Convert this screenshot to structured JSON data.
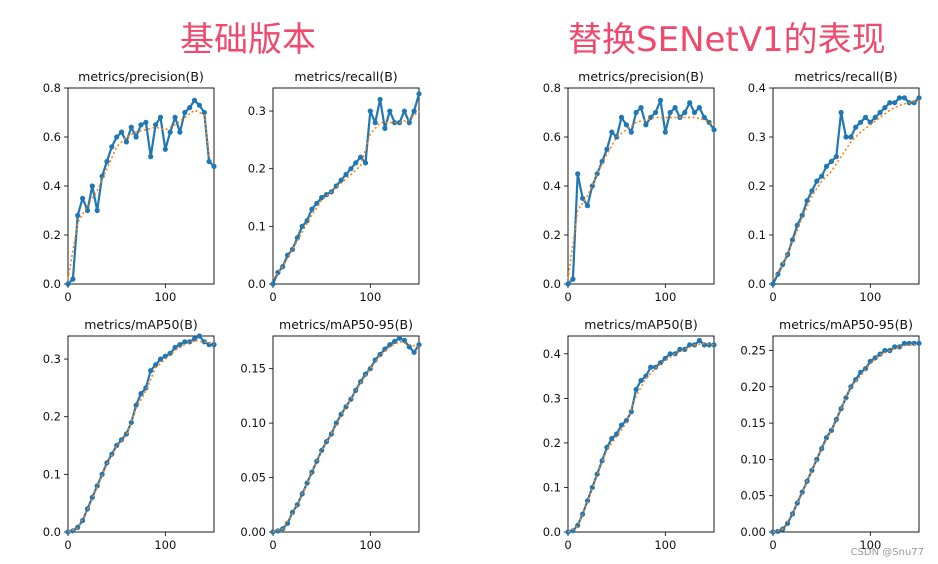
{
  "groups": [
    {
      "title": "基础版本"
    },
    {
      "title": "替换SENetV1的表现"
    }
  ],
  "colors": {
    "series": "#1f77b4",
    "smooth": "#ff7f0e",
    "title_accent": "#ef4a6e"
  },
  "watermark": "CSDN @Snu77",
  "chart_data": [
    {
      "type": "line",
      "title": "metrics/precision(B)",
      "xlim": [
        0,
        150
      ],
      "ylim": [
        0,
        0.8
      ],
      "xticks": [
        0,
        100
      ],
      "yticks": [
        0.0,
        0.2,
        0.4,
        0.6,
        0.8
      ],
      "series": [
        {
          "name": "results",
          "x": [
            0,
            5,
            10,
            15,
            20,
            25,
            30,
            35,
            40,
            45,
            50,
            55,
            60,
            65,
            70,
            75,
            80,
            85,
            90,
            95,
            100,
            105,
            110,
            115,
            120,
            125,
            130,
            135,
            140,
            145,
            150
          ],
          "y": [
            0,
            0.02,
            0.28,
            0.35,
            0.3,
            0.4,
            0.3,
            0.44,
            0.5,
            0.56,
            0.6,
            0.62,
            0.58,
            0.64,
            0.6,
            0.65,
            0.66,
            0.52,
            0.65,
            0.68,
            0.55,
            0.62,
            0.68,
            0.62,
            0.7,
            0.72,
            0.75,
            0.73,
            0.7,
            0.5,
            0.48
          ]
        },
        {
          "name": "smooth",
          "x": [
            0,
            10,
            20,
            30,
            40,
            50,
            60,
            70,
            80,
            90,
            100,
            110,
            120,
            130,
            140,
            145
          ],
          "y": [
            0.02,
            0.25,
            0.32,
            0.38,
            0.47,
            0.56,
            0.6,
            0.62,
            0.63,
            0.64,
            0.63,
            0.65,
            0.68,
            0.71,
            0.69,
            0.52
          ]
        }
      ]
    },
    {
      "type": "line",
      "title": "metrics/recall(B)",
      "xlim": [
        0,
        150
      ],
      "ylim": [
        0,
        0.34
      ],
      "xticks": [
        0,
        100
      ],
      "yticks": [
        0.0,
        0.1,
        0.2,
        0.3
      ],
      "series": [
        {
          "name": "results",
          "x": [
            0,
            5,
            10,
            15,
            20,
            25,
            30,
            35,
            40,
            45,
            50,
            55,
            60,
            65,
            70,
            75,
            80,
            85,
            90,
            95,
            100,
            105,
            110,
            115,
            120,
            125,
            130,
            135,
            140,
            145,
            150
          ],
          "y": [
            0,
            0.02,
            0.03,
            0.05,
            0.06,
            0.08,
            0.1,
            0.11,
            0.13,
            0.14,
            0.15,
            0.155,
            0.16,
            0.17,
            0.18,
            0.19,
            0.2,
            0.21,
            0.22,
            0.21,
            0.3,
            0.28,
            0.32,
            0.27,
            0.3,
            0.28,
            0.28,
            0.3,
            0.28,
            0.3,
            0.33
          ]
        },
        {
          "name": "smooth",
          "x": [
            0,
            10,
            20,
            30,
            40,
            50,
            60,
            70,
            80,
            90,
            100,
            110,
            120,
            130,
            140,
            150
          ],
          "y": [
            0.01,
            0.03,
            0.06,
            0.09,
            0.12,
            0.145,
            0.16,
            0.175,
            0.19,
            0.205,
            0.26,
            0.28,
            0.28,
            0.28,
            0.285,
            0.3
          ]
        }
      ]
    },
    {
      "type": "line",
      "title": "metrics/mAP50(B)",
      "xlim": [
        0,
        150
      ],
      "ylim": [
        0,
        0.34
      ],
      "xticks": [
        0,
        100
      ],
      "yticks": [
        0.0,
        0.1,
        0.2,
        0.3
      ],
      "series": [
        {
          "name": "results",
          "x": [
            0,
            5,
            10,
            15,
            20,
            25,
            30,
            35,
            40,
            45,
            50,
            55,
            60,
            65,
            70,
            75,
            80,
            85,
            90,
            95,
            100,
            105,
            110,
            115,
            120,
            125,
            130,
            135,
            140,
            145,
            150
          ],
          "y": [
            0,
            0.002,
            0.008,
            0.02,
            0.04,
            0.06,
            0.08,
            0.1,
            0.12,
            0.135,
            0.15,
            0.16,
            0.17,
            0.19,
            0.22,
            0.24,
            0.25,
            0.28,
            0.29,
            0.3,
            0.305,
            0.31,
            0.32,
            0.325,
            0.33,
            0.33,
            0.335,
            0.34,
            0.33,
            0.325,
            0.325
          ]
        },
        {
          "name": "smooth",
          "x": [
            0,
            10,
            20,
            30,
            40,
            50,
            60,
            70,
            80,
            90,
            100,
            110,
            120,
            130,
            140,
            150
          ],
          "y": [
            0,
            0.007,
            0.038,
            0.078,
            0.118,
            0.148,
            0.168,
            0.215,
            0.245,
            0.285,
            0.3,
            0.315,
            0.325,
            0.332,
            0.33,
            0.325
          ]
        }
      ]
    },
    {
      "type": "line",
      "title": "metrics/mAP50-95(B)",
      "xlim": [
        0,
        150
      ],
      "ylim": [
        0,
        0.18
      ],
      "xticks": [
        0,
        100
      ],
      "yticks": [
        0.0,
        0.05,
        0.1,
        0.15
      ],
      "series": [
        {
          "name": "results",
          "x": [
            0,
            5,
            10,
            15,
            20,
            25,
            30,
            35,
            40,
            45,
            50,
            55,
            60,
            65,
            70,
            75,
            80,
            85,
            90,
            95,
            100,
            105,
            110,
            115,
            120,
            125,
            130,
            135,
            140,
            145,
            150
          ],
          "y": [
            0,
            0.001,
            0.003,
            0.008,
            0.018,
            0.025,
            0.035,
            0.045,
            0.055,
            0.065,
            0.075,
            0.083,
            0.09,
            0.1,
            0.108,
            0.115,
            0.122,
            0.13,
            0.138,
            0.145,
            0.15,
            0.158,
            0.163,
            0.168,
            0.172,
            0.175,
            0.178,
            0.176,
            0.17,
            0.165,
            0.172
          ]
        },
        {
          "name": "smooth",
          "x": [
            0,
            10,
            20,
            30,
            40,
            50,
            60,
            70,
            80,
            90,
            100,
            110,
            120,
            130,
            140,
            150
          ],
          "y": [
            0,
            0.003,
            0.017,
            0.035,
            0.055,
            0.075,
            0.09,
            0.107,
            0.122,
            0.137,
            0.15,
            0.162,
            0.17,
            0.175,
            0.172,
            0.17
          ]
        }
      ]
    },
    {
      "type": "line",
      "title": "metrics/precision(B)",
      "xlim": [
        0,
        150
      ],
      "ylim": [
        0,
        0.8
      ],
      "xticks": [
        0,
        100
      ],
      "yticks": [
        0.0,
        0.2,
        0.4,
        0.6,
        0.8
      ],
      "series": [
        {
          "name": "results",
          "x": [
            0,
            5,
            10,
            15,
            20,
            25,
            30,
            35,
            40,
            45,
            50,
            55,
            60,
            65,
            70,
            75,
            80,
            85,
            90,
            95,
            100,
            105,
            110,
            115,
            120,
            125,
            130,
            135,
            140,
            145,
            150
          ],
          "y": [
            0,
            0.02,
            0.45,
            0.35,
            0.32,
            0.4,
            0.45,
            0.5,
            0.55,
            0.62,
            0.6,
            0.68,
            0.65,
            0.62,
            0.7,
            0.72,
            0.65,
            0.68,
            0.7,
            0.75,
            0.62,
            0.7,
            0.72,
            0.68,
            0.7,
            0.74,
            0.7,
            0.72,
            0.68,
            0.66,
            0.63
          ]
        },
        {
          "name": "smooth",
          "x": [
            0,
            10,
            20,
            30,
            40,
            50,
            60,
            70,
            80,
            90,
            100,
            110,
            120,
            130,
            140,
            150
          ],
          "y": [
            0.02,
            0.3,
            0.36,
            0.45,
            0.53,
            0.6,
            0.63,
            0.66,
            0.67,
            0.68,
            0.68,
            0.68,
            0.68,
            0.68,
            0.67,
            0.65
          ]
        }
      ]
    },
    {
      "type": "line",
      "title": "metrics/recall(B)",
      "xlim": [
        0,
        150
      ],
      "ylim": [
        0,
        0.4
      ],
      "xticks": [
        0,
        100
      ],
      "yticks": [
        0.0,
        0.1,
        0.2,
        0.3,
        0.4
      ],
      "series": [
        {
          "name": "results",
          "x": [
            0,
            5,
            10,
            15,
            20,
            25,
            30,
            35,
            40,
            45,
            50,
            55,
            60,
            65,
            70,
            75,
            80,
            85,
            90,
            95,
            100,
            105,
            110,
            115,
            120,
            125,
            130,
            135,
            140,
            145,
            150
          ],
          "y": [
            0,
            0.02,
            0.04,
            0.06,
            0.09,
            0.12,
            0.14,
            0.17,
            0.19,
            0.21,
            0.22,
            0.24,
            0.25,
            0.26,
            0.35,
            0.3,
            0.3,
            0.32,
            0.33,
            0.34,
            0.33,
            0.34,
            0.35,
            0.36,
            0.37,
            0.37,
            0.38,
            0.38,
            0.37,
            0.37,
            0.38
          ]
        },
        {
          "name": "smooth",
          "x": [
            0,
            10,
            20,
            30,
            40,
            50,
            60,
            70,
            80,
            90,
            100,
            110,
            120,
            130,
            140,
            150
          ],
          "y": [
            0.01,
            0.04,
            0.085,
            0.135,
            0.18,
            0.21,
            0.23,
            0.26,
            0.29,
            0.31,
            0.325,
            0.34,
            0.355,
            0.365,
            0.37,
            0.375
          ]
        }
      ]
    },
    {
      "type": "line",
      "title": "metrics/mAP50(B)",
      "xlim": [
        0,
        150
      ],
      "ylim": [
        0,
        0.44
      ],
      "xticks": [
        0,
        100
      ],
      "yticks": [
        0.0,
        0.1,
        0.2,
        0.3,
        0.4
      ],
      "series": [
        {
          "name": "results",
          "x": [
            0,
            5,
            10,
            15,
            20,
            25,
            30,
            35,
            40,
            45,
            50,
            55,
            60,
            65,
            70,
            75,
            80,
            85,
            90,
            95,
            100,
            105,
            110,
            115,
            120,
            125,
            130,
            135,
            140,
            145,
            150
          ],
          "y": [
            0,
            0.003,
            0.015,
            0.04,
            0.07,
            0.1,
            0.13,
            0.16,
            0.19,
            0.21,
            0.22,
            0.24,
            0.25,
            0.27,
            0.32,
            0.34,
            0.35,
            0.37,
            0.37,
            0.38,
            0.39,
            0.4,
            0.4,
            0.41,
            0.41,
            0.42,
            0.42,
            0.43,
            0.42,
            0.42,
            0.42
          ]
        },
        {
          "name": "smooth",
          "x": [
            0,
            10,
            20,
            30,
            40,
            50,
            60,
            70,
            80,
            90,
            100,
            110,
            120,
            130,
            140,
            150
          ],
          "y": [
            0,
            0.013,
            0.068,
            0.128,
            0.185,
            0.215,
            0.245,
            0.305,
            0.345,
            0.368,
            0.385,
            0.4,
            0.41,
            0.42,
            0.423,
            0.42
          ]
        }
      ]
    },
    {
      "type": "line",
      "title": "metrics/mAP50-95(B)",
      "xlim": [
        0,
        150
      ],
      "ylim": [
        0,
        0.27
      ],
      "xticks": [
        0,
        100
      ],
      "yticks": [
        0.0,
        0.05,
        0.1,
        0.15,
        0.2,
        0.25
      ],
      "series": [
        {
          "name": "results",
          "x": [
            0,
            5,
            10,
            15,
            20,
            25,
            30,
            35,
            40,
            45,
            50,
            55,
            60,
            65,
            70,
            75,
            80,
            85,
            90,
            95,
            100,
            105,
            110,
            115,
            120,
            125,
            130,
            135,
            140,
            145,
            150
          ],
          "y": [
            0,
            0.001,
            0.004,
            0.012,
            0.025,
            0.04,
            0.055,
            0.07,
            0.085,
            0.1,
            0.115,
            0.13,
            0.14,
            0.155,
            0.17,
            0.185,
            0.2,
            0.21,
            0.22,
            0.225,
            0.235,
            0.24,
            0.245,
            0.25,
            0.25,
            0.255,
            0.255,
            0.26,
            0.26,
            0.26,
            0.26
          ]
        },
        {
          "name": "smooth",
          "x": [
            0,
            10,
            20,
            30,
            40,
            50,
            60,
            70,
            80,
            90,
            100,
            110,
            120,
            130,
            140,
            150
          ],
          "y": [
            0,
            0.004,
            0.025,
            0.055,
            0.085,
            0.115,
            0.14,
            0.17,
            0.2,
            0.215,
            0.232,
            0.244,
            0.25,
            0.255,
            0.258,
            0.258
          ]
        }
      ]
    }
  ]
}
